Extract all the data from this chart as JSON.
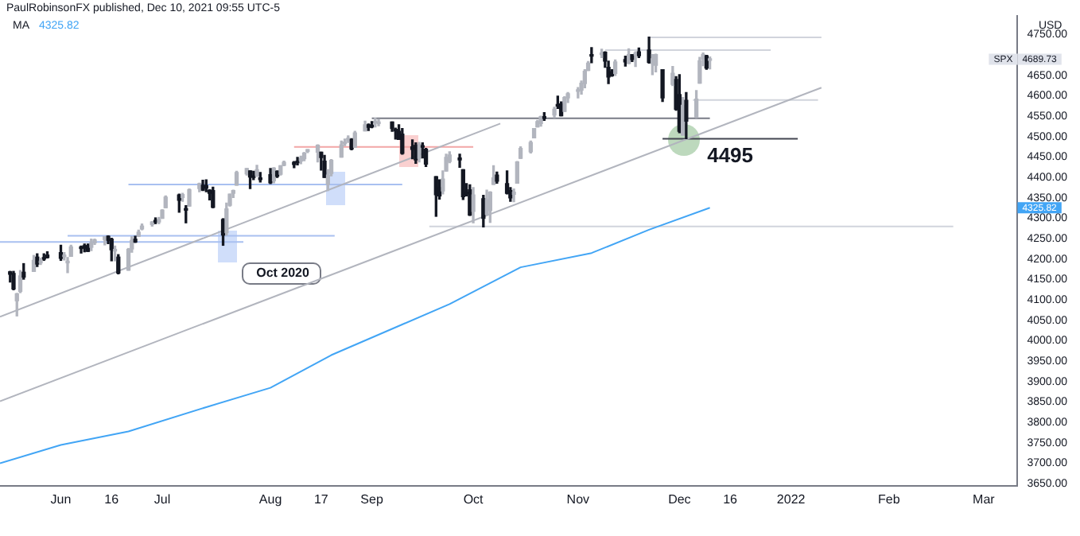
{
  "chart_data": {
    "type": "candlestick",
    "title": "PaulRobinsonFX published, Dec 10, 2021 09:55 UTC-5",
    "ylabel": "USD",
    "legend": "top left",
    "x": [
      "2021-05-17",
      "2021-05-18",
      "2021-05-19",
      "2021-05-20",
      "2021-05-21",
      "2021-05-24",
      "2021-05-25",
      "2021-05-26",
      "2021-05-27",
      "2021-05-28",
      "2021-06-01",
      "2021-06-02",
      "2021-06-03",
      "2021-06-04",
      "2021-06-07",
      "2021-06-08",
      "2021-06-09",
      "2021-06-10",
      "2021-06-11",
      "2021-06-14",
      "2021-06-15",
      "2021-06-16",
      "2021-06-17",
      "2021-06-18",
      "2021-06-21",
      "2021-06-22",
      "2021-06-23",
      "2021-06-24",
      "2021-06-25",
      "2021-06-28",
      "2021-06-29",
      "2021-06-30",
      "2021-07-01",
      "2021-07-02",
      "2021-07-06",
      "2021-07-07",
      "2021-07-08",
      "2021-07-09",
      "2021-07-12",
      "2021-07-13",
      "2021-07-14",
      "2021-07-15",
      "2021-07-16",
      "2021-07-19",
      "2021-07-20",
      "2021-07-21",
      "2021-07-22",
      "2021-07-23",
      "2021-07-26",
      "2021-07-27",
      "2021-07-28",
      "2021-07-29",
      "2021-07-30",
      "2021-08-02",
      "2021-08-03",
      "2021-08-04",
      "2021-08-05",
      "2021-08-06",
      "2021-08-09",
      "2021-08-10",
      "2021-08-11",
      "2021-08-12",
      "2021-08-13",
      "2021-08-16",
      "2021-08-17",
      "2021-08-18",
      "2021-08-19",
      "2021-08-20",
      "2021-08-23",
      "2021-08-24",
      "2021-08-25",
      "2021-08-26",
      "2021-08-27",
      "2021-08-30",
      "2021-08-31",
      "2021-09-01",
      "2021-09-02",
      "2021-09-03",
      "2021-09-07",
      "2021-09-08",
      "2021-09-09",
      "2021-09-10",
      "2021-09-13",
      "2021-09-14",
      "2021-09-15",
      "2021-09-16",
      "2021-09-17",
      "2021-09-20",
      "2021-09-21",
      "2021-09-22",
      "2021-09-23",
      "2021-09-24",
      "2021-09-27",
      "2021-09-28",
      "2021-09-29",
      "2021-09-30",
      "2021-10-01",
      "2021-10-04",
      "2021-10-05",
      "2021-10-06",
      "2021-10-07",
      "2021-10-08",
      "2021-10-11",
      "2021-10-12",
      "2021-10-13",
      "2021-10-14",
      "2021-10-15",
      "2021-10-18",
      "2021-10-19",
      "2021-10-20",
      "2021-10-21",
      "2021-10-22",
      "2021-10-25",
      "2021-10-26",
      "2021-10-27",
      "2021-10-28",
      "2021-10-29",
      "2021-11-01",
      "2021-11-02",
      "2021-11-03",
      "2021-11-04",
      "2021-11-05",
      "2021-11-08",
      "2021-11-09",
      "2021-11-10",
      "2021-11-11",
      "2021-11-12",
      "2021-11-15",
      "2021-11-16",
      "2021-11-17",
      "2021-11-18",
      "2021-11-19",
      "2021-11-22",
      "2021-11-23",
      "2021-11-24",
      "2021-11-26",
      "2021-11-29",
      "2021-11-30",
      "2021-12-01",
      "2021-12-02",
      "2021-12-03",
      "2021-12-06",
      "2021-12-07",
      "2021-12-08",
      "2021-12-09",
      "2021-12-10"
    ],
    "ohlc": [
      [
        4169,
        4170,
        4144,
        4163
      ],
      [
        4165,
        4170,
        4125,
        4127
      ],
      [
        4098,
        4116,
        4061,
        4115
      ],
      [
        4121,
        4172,
        4118,
        4159
      ],
      [
        4168,
        4189,
        4151,
        4156
      ],
      [
        4170,
        4209,
        4170,
        4197
      ],
      [
        4205,
        4213,
        4182,
        4188
      ],
      [
        4191,
        4202,
        4187,
        4195
      ],
      [
        4201,
        4213,
        4197,
        4200
      ],
      [
        4210,
        4218,
        4203,
        4204
      ],
      [
        4216,
        4234,
        4197,
        4202
      ],
      [
        4206,
        4216,
        4198,
        4208
      ],
      [
        4191,
        4204,
        4167,
        4192
      ],
      [
        4207,
        4234,
        4207,
        4230
      ],
      [
        4229,
        4232,
        4215,
        4226
      ],
      [
        4233,
        4237,
        4218,
        4227
      ],
      [
        4233,
        4237,
        4219,
        4219
      ],
      [
        4229,
        4249,
        4221,
        4239
      ],
      [
        4240,
        4249,
        4236,
        4247
      ],
      [
        4248,
        4255,
        4235,
        4255
      ],
      [
        4256,
        4257,
        4238,
        4246
      ],
      [
        4249,
        4251,
        4196,
        4223
      ],
      [
        4220,
        4232,
        4196,
        4222
      ],
      [
        4205,
        4211,
        4164,
        4166
      ],
      [
        4173,
        4226,
        4173,
        4224
      ],
      [
        4225,
        4255,
        4217,
        4246
      ],
      [
        4249,
        4256,
        4241,
        4242
      ],
      [
        4256,
        4271,
        4256,
        4266
      ],
      [
        4274,
        4286,
        4272,
        4281
      ],
      [
        4285,
        4292,
        4281,
        4291
      ],
      [
        4293,
        4301,
        4287,
        4291
      ],
      [
        4291,
        4302,
        4287,
        4297
      ],
      [
        4300,
        4321,
        4300,
        4320
      ],
      [
        4326,
        4355,
        4326,
        4352
      ],
      [
        4357,
        4359,
        4315,
        4344
      ],
      [
        4351,
        4361,
        4342,
        4358
      ],
      [
        4322,
        4331,
        4289,
        4320
      ],
      [
        4330,
        4372,
        4330,
        4370
      ],
      [
        4373,
        4386,
        4365,
        4385
      ],
      [
        4381,
        4393,
        4368,
        4369
      ],
      [
        4380,
        4394,
        4365,
        4374
      ],
      [
        4369,
        4370,
        4345,
        4361
      ],
      [
        4368,
        4376,
        4326,
        4327
      ],
      [
        4297,
        4299,
        4234,
        4259
      ],
      [
        4265,
        4337,
        4259,
        4323
      ],
      [
        4332,
        4359,
        4330,
        4359
      ],
      [
        4361,
        4369,
        4351,
        4368
      ],
      [
        4381,
        4415,
        4381,
        4412
      ],
      [
        4409,
        4422,
        4406,
        4422
      ],
      [
        4416,
        4416,
        4373,
        4401
      ],
      [
        4402,
        4415,
        4395,
        4400
      ],
      [
        4403,
        4430,
        4403,
        4419
      ],
      [
        4396,
        4412,
        4389,
        4395
      ],
      [
        4407,
        4422,
        4385,
        4387
      ],
      [
        4392,
        4424,
        4387,
        4423
      ],
      [
        4415,
        4416,
        4400,
        4403
      ],
      [
        4408,
        4429,
        4406,
        4429
      ],
      [
        4430,
        4440,
        4429,
        4437
      ],
      [
        4437,
        4439,
        4424,
        4432
      ],
      [
        4436,
        4449,
        4431,
        4436
      ],
      [
        4440,
        4452,
        4434,
        4447
      ],
      [
        4446,
        4461,
        4441,
        4460
      ],
      [
        4464,
        4468,
        4461,
        4468
      ],
      [
        4462,
        4480,
        4438,
        4479
      ],
      [
        4462,
        4462,
        4418,
        4449
      ],
      [
        4440,
        4454,
        4400,
        4400
      ],
      [
        4383,
        4419,
        4368,
        4406
      ],
      [
        4410,
        4444,
        4404,
        4442
      ],
      [
        4450,
        4489,
        4450,
        4480
      ],
      [
        4483,
        4494,
        4478,
        4486
      ],
      [
        4490,
        4502,
        4486,
        4496
      ],
      [
        4493,
        4495,
        4468,
        4470
      ],
      [
        4474,
        4513,
        4474,
        4509
      ],
      [
        4514,
        4538,
        4514,
        4529
      ],
      [
        4529,
        4531,
        4515,
        4523
      ],
      [
        4528,
        4537,
        4522,
        4524
      ],
      [
        4534,
        4545,
        4524,
        4537
      ],
      [
        4532,
        4542,
        4527,
        4535
      ],
      [
        4536,
        4536,
        4513,
        4520
      ],
      [
        4518,
        4521,
        4494,
        4514
      ],
      [
        4513,
        4529,
        4493,
        4493
      ],
      [
        4506,
        4520,
        4457,
        4459
      ],
      [
        4475,
        4492,
        4446,
        4469
      ],
      [
        4479,
        4485,
        4435,
        4443
      ],
      [
        4447,
        4486,
        4438,
        4481
      ],
      [
        4477,
        4485,
        4448,
        4474
      ],
      [
        4469,
        4471,
        4427,
        4433
      ],
      [
        4402,
        4402,
        4305,
        4358
      ],
      [
        4375,
        4394,
        4347,
        4355
      ],
      [
        4367,
        4416,
        4360,
        4396
      ],
      [
        4416,
        4457,
        4416,
        4449
      ],
      [
        4439,
        4463,
        4436,
        4455
      ],
      [
        4448,
        4457,
        4425,
        4443
      ],
      [
        4419,
        4419,
        4346,
        4353
      ],
      [
        4362,
        4385,
        4355,
        4360
      ],
      [
        4370,
        4382,
        4307,
        4308
      ],
      [
        4317,
        4375,
        4289,
        4357
      ],
      [
        4348,
        4356,
        4279,
        4300
      ],
      [
        4310,
        4369,
        4309,
        4346
      ],
      [
        4319,
        4365,
        4290,
        4364
      ],
      [
        4383,
        4429,
        4383,
        4399
      ],
      [
        4406,
        4413,
        4386,
        4391
      ],
      [
        4385,
        4416,
        4360,
        4361
      ],
      [
        4368,
        4375,
        4342,
        4350
      ],
      [
        4359,
        4372,
        4341,
        4364
      ],
      [
        4386,
        4439,
        4386,
        4438
      ],
      [
        4447,
        4475,
        4447,
        4471
      ],
      [
        4463,
        4489,
        4460,
        4486
      ],
      [
        4497,
        4520,
        4497,
        4520
      ],
      [
        4524,
        4540,
        4524,
        4537
      ],
      [
        4532,
        4550,
        4526,
        4549
      ],
      [
        4547,
        4559,
        4540,
        4545
      ],
      [
        4553,
        4572,
        4547,
        4567
      ],
      [
        4579,
        4599,
        4569,
        4575
      ],
      [
        4580,
        4585,
        4551,
        4551
      ],
      [
        4562,
        4598,
        4562,
        4596
      ],
      [
        4595,
        4608,
        4584,
        4605
      ],
      [
        4611,
        4620,
        4595,
        4613
      ],
      [
        4614,
        4636,
        4604,
        4631
      ],
      [
        4630,
        4664,
        4620,
        4660
      ],
      [
        4662,
        4684,
        4662,
        4680
      ],
      [
        4699,
        4718,
        4681,
        4697
      ],
      [
        4701,
        4714,
        4694,
        4702
      ],
      [
        4707,
        4708,
        4670,
        4685
      ],
      [
        4670,
        4685,
        4630,
        4646
      ],
      [
        4659,
        4664,
        4648,
        4649
      ],
      [
        4655,
        4688,
        4650,
        4683
      ],
      [
        4689,
        4697,
        4673,
        4683
      ],
      [
        4679,
        4715,
        4679,
        4701
      ],
      [
        4701,
        4701,
        4684,
        4689
      ],
      [
        4700,
        4708,
        4672,
        4705
      ],
      [
        4708,
        4717,
        4694,
        4698
      ],
      [
        4712,
        4744,
        4680,
        4682
      ],
      [
        4679,
        4701,
        4652,
        4691
      ],
      [
        4675,
        4702,
        4659,
        4701
      ],
      [
        4664,
        4664,
        4586,
        4595
      ],
      [
        4628,
        4672,
        4625,
        4655
      ],
      [
        4640,
        4647,
        4565,
        4567
      ],
      [
        4603,
        4652,
        4510,
        4513
      ],
      [
        4504,
        4596,
        4504,
        4577
      ],
      [
        4589,
        4608,
        4495,
        4538
      ],
      [
        4548,
        4613,
        4547,
        4592
      ],
      [
        4631,
        4694,
        4631,
        4686
      ],
      [
        4690,
        4705,
        4674,
        4701
      ],
      [
        4698,
        4699,
        4665,
        4668
      ],
      [
        4687,
        4695,
        4666,
        4689.73
      ]
    ],
    "colors": [
      "#131722",
      "#131722",
      "#b2b5be",
      "#b2b5be",
      "#131722",
      "#b2b5be",
      "#131722",
      "#b2b5be",
      "#131722",
      "#131722",
      "#131722",
      "#b2b5be",
      "#b2b5be",
      "#b2b5be",
      "#131722",
      "#131722",
      "#131722",
      "#b2b5be",
      "#b2b5be",
      "#b2b5be",
      "#131722",
      "#131722",
      "#b2b5be",
      "#131722",
      "#b2b5be",
      "#b2b5be",
      "#131722",
      "#b2b5be",
      "#b2b5be",
      "#b2b5be",
      "#131722",
      "#b2b5be",
      "#b2b5be",
      "#b2b5be",
      "#131722",
      "#b2b5be",
      "#131722",
      "#b2b5be",
      "#b2b5be",
      "#131722",
      "#131722",
      "#131722",
      "#131722",
      "#131722",
      "#b2b5be",
      "#b2b5be",
      "#b2b5be",
      "#b2b5be",
      "#b2b5be",
      "#131722",
      "#131722",
      "#b2b5be",
      "#131722",
      "#131722",
      "#b2b5be",
      "#131722",
      "#b2b5be",
      "#b2b5be",
      "#131722",
      "#131722",
      "#b2b5be",
      "#b2b5be",
      "#b2b5be",
      "#b2b5be",
      "#131722",
      "#131722",
      "#b2b5be",
      "#b2b5be",
      "#b2b5be",
      "#b2b5be",
      "#b2b5be",
      "#131722",
      "#b2b5be",
      "#b2b5be",
      "#131722",
      "#131722",
      "#b2b5be",
      "#b2b5be",
      "#131722",
      "#131722",
      "#131722",
      "#131722",
      "#131722",
      "#131722",
      "#b2b5be",
      "#131722",
      "#131722",
      "#131722",
      "#131722",
      "#b2b5be",
      "#b2b5be",
      "#b2b5be",
      "#131722",
      "#131722",
      "#131722",
      "#131722",
      "#b2b5be",
      "#131722",
      "#b2b5be",
      "#b2b5be",
      "#b2b5be",
      "#131722",
      "#131722",
      "#131722",
      "#b2b5be",
      "#b2b5be",
      "#b2b5be",
      "#b2b5be",
      "#b2b5be",
      "#b2b5be",
      "#b2b5be",
      "#131722",
      "#b2b5be",
      "#131722",
      "#131722",
      "#b2b5be",
      "#b2b5be",
      "#b2b5be",
      "#b2b5be",
      "#b2b5be",
      "#b2b5be",
      "#131722",
      "#b2b5be",
      "#131722",
      "#131722",
      "#131722",
      "#b2b5be",
      "#131722",
      "#b2b5be",
      "#131722",
      "#b2b5be",
      "#131722",
      "#131722",
      "#b2b5be",
      "#b2b5be",
      "#131722",
      "#b2b5be",
      "#131722",
      "#131722",
      "#b2b5be",
      "#131722",
      "#b2b5be",
      "#b2b5be",
      "#b2b5be",
      "#131722",
      "#b2b5be"
    ],
    "series": [
      {
        "name": "MA",
        "type": "line",
        "color": "#42a5f5",
        "x": [
          "2021-05-14",
          "2021-06-01",
          "2021-06-21",
          "2021-07-15",
          "2021-08-02",
          "2021-08-20",
          "2021-09-10",
          "2021-09-24",
          "2021-10-15",
          "2021-11-05",
          "2021-11-22",
          "2021-12-10"
        ],
        "values": [
          3700,
          3745,
          3778,
          3840,
          3885,
          3965,
          4040,
          4090,
          4180,
          4215,
          4272,
          4325.82
        ]
      },
      {
        "type": "line",
        "color": "#b2b5be",
        "x": [
          "2021-05-14",
          "2021-10-09"
        ],
        "values": [
          4059,
          4532
        ]
      },
      {
        "type": "line",
        "color": "#b2b5be",
        "x": [
          "2021-05-14",
          "2022-01-12"
        ],
        "values": [
          3852,
          4620
        ]
      },
      {
        "type": "line",
        "color": "#d1d4dc",
        "x": [
          "2021-11-22",
          "2022-01-12"
        ],
        "values": [
          4743,
          4743
        ]
      },
      {
        "type": "line",
        "color": "#d1d4dc",
        "x": [
          "2021-11-09",
          "2021-12-28"
        ],
        "values": [
          4712,
          4712
        ]
      },
      {
        "type": "line",
        "color": "#d1d4dc",
        "x": [
          "2021-12-05",
          "2022-01-11"
        ],
        "values": [
          4590,
          4590
        ]
      },
      {
        "type": "line",
        "color": "#787b86",
        "x": [
          "2021-09-01",
          "2021-12-10"
        ],
        "values": [
          4545,
          4545
        ]
      },
      {
        "type": "line",
        "color": "#434651",
        "x": [
          "2021-11-26",
          "2022-01-05"
        ],
        "values": [
          4495,
          4495
        ]
      },
      {
        "type": "line",
        "color": "#d1d4dc",
        "x": [
          "2021-09-18",
          "2022-02-20"
        ],
        "values": [
          4280,
          4280
        ]
      },
      {
        "type": "line",
        "color": "#a9c0f0",
        "x": [
          "2021-06-21",
          "2021-09-10"
        ],
        "values": [
          4383,
          4383
        ]
      },
      {
        "type": "line",
        "color": "#a9c0f0",
        "x": [
          "2021-06-03",
          "2021-08-21"
        ],
        "values": [
          4257,
          4257
        ]
      },
      {
        "type": "line",
        "color": "#a9c0f0",
        "x": [
          "2021-05-14",
          "2021-07-25"
        ],
        "values": [
          4242,
          4242
        ]
      },
      {
        "type": "line",
        "color": "#f2a6a6",
        "x": [
          "2021-08-09",
          "2021-10-01"
        ],
        "values": [
          4475,
          4475
        ]
      }
    ],
    "xlim": [
      "2021-05-14",
      "2022-03-11"
    ],
    "xticks": [
      {
        "value": "2021-06-01",
        "label": "Jun"
      },
      {
        "value": "2021-06-16",
        "label": "16"
      },
      {
        "value": "2021-07-01",
        "label": "Jul"
      },
      {
        "value": "2021-08-02",
        "label": "Aug"
      },
      {
        "value": "2021-08-17",
        "label": "17"
      },
      {
        "value": "2021-09-01",
        "label": "Sep"
      },
      {
        "value": "2021-10-01",
        "label": "Oct"
      },
      {
        "value": "2021-11-01",
        "label": "Nov"
      },
      {
        "value": "2021-12-01",
        "label": "Dec"
      },
      {
        "value": "2021-12-16",
        "label": "16"
      },
      {
        "value": "2022-01-03",
        "label": "2022"
      },
      {
        "value": "2022-02-01",
        "label": "Feb"
      },
      {
        "value": "2022-03-01",
        "label": "Mar"
      }
    ],
    "ylim": [
      3645,
      4795
    ],
    "yticks": [
      {
        "value": 3650,
        "label": "3650.00"
      },
      {
        "value": 3700,
        "label": "3700.00"
      },
      {
        "value": 3750,
        "label": "3750.00"
      },
      {
        "value": 3800,
        "label": "3800.00"
      },
      {
        "value": 3850,
        "label": "3850.00"
      },
      {
        "value": 3900,
        "label": "3900.00"
      },
      {
        "value": 3950,
        "label": "3950.00"
      },
      {
        "value": 4000,
        "label": "4000.00"
      },
      {
        "value": 4050,
        "label": "4050.00"
      },
      {
        "value": 4100,
        "label": "4100.00"
      },
      {
        "value": 4150,
        "label": "4150.00"
      },
      {
        "value": 4200,
        "label": "4200.00"
      },
      {
        "value": 4250,
        "label": "4250.00"
      },
      {
        "value": 4300,
        "label": "4300.00"
      },
      {
        "value": 4350,
        "label": "4350.00"
      },
      {
        "value": 4400,
        "label": "4400.00"
      },
      {
        "value": 4450,
        "label": "4450.00"
      },
      {
        "value": 4500,
        "label": "4500.00"
      },
      {
        "value": 4550,
        "label": "4550.00"
      },
      {
        "value": 4600,
        "label": "4600.00"
      },
      {
        "value": 4650,
        "label": "4650.00"
      },
      {
        "value": 4750,
        "label": "4750.00"
      }
    ],
    "annotations": [
      "4325.82",
      "4689.73",
      "SPX",
      "4325.82",
      {
        "text": "4495",
        "x": "2021-12-16",
        "y": 4495
      },
      {
        "text": "Oct 2020",
        "x": "2021-08-16",
        "y": 4150
      }
    ]
  }
}
